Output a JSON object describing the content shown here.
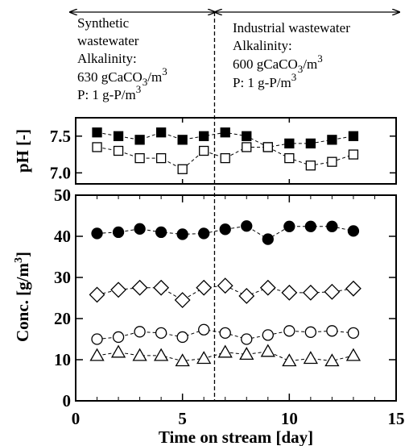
{
  "annotations": {
    "left": {
      "line1": "Synthetic",
      "line2": "wastewater",
      "line3": "Alkalinity:",
      "line4_pre": "630 gCaCO",
      "line4_sub": "3",
      "line4_mid": "/m",
      "line4_sup": "3",
      "line5_pre": "P: 1 g-P/m",
      "line5_sup": "3"
    },
    "right": {
      "line1": "Industrial wastewater",
      "line2": "Alkalinity:",
      "line3_pre": "600 gCaCO",
      "line3_sub": "3",
      "line3_mid": "/m",
      "line3_sup": "3",
      "line4_pre": "P: 1 g-P/m",
      "line4_sup": "3"
    }
  },
  "chart_data": [
    {
      "type": "scatter",
      "ylabel": "pH [-]",
      "ylim": [
        6.85,
        7.75
      ],
      "yticks": [
        "7.5",
        "7.0"
      ],
      "ytick_values": [
        7.5,
        7.0
      ],
      "xlim": [
        0,
        15
      ],
      "series": [
        {
          "marker": "filled-square",
          "x": [
            1,
            2,
            3,
            4,
            5,
            6,
            7,
            8,
            9,
            10,
            11,
            12,
            13
          ],
          "y": [
            7.55,
            7.5,
            7.45,
            7.55,
            7.45,
            7.5,
            7.55,
            7.5,
            7.35,
            7.4,
            7.4,
            7.45,
            7.5
          ]
        },
        {
          "marker": "open-square",
          "x": [
            1,
            2,
            3,
            4,
            5,
            6,
            7,
            8,
            9,
            10,
            11,
            12,
            13
          ],
          "y": [
            7.35,
            7.3,
            7.2,
            7.2,
            7.05,
            7.3,
            7.2,
            7.35,
            7.35,
            7.2,
            7.1,
            7.15,
            7.25
          ]
        }
      ],
      "divider_x": 6.5
    },
    {
      "type": "scatter",
      "xlabel": "Time on stream [day]",
      "ylabel_pre": "Conc. [g/m",
      "ylabel_sup": "3",
      "ylabel_post": "]",
      "xlim": [
        0,
        15
      ],
      "ylim": [
        0,
        50
      ],
      "xticks": [
        "0",
        "5",
        "10",
        "15"
      ],
      "xtick_values": [
        0,
        5,
        10,
        15
      ],
      "yticks": [
        "0",
        "10",
        "20",
        "30",
        "40",
        "50"
      ],
      "ytick_values": [
        0,
        10,
        20,
        30,
        40,
        50
      ],
      "series": [
        {
          "marker": "filled-circle",
          "x": [
            1,
            2,
            3,
            4,
            5,
            6,
            7,
            8,
            9,
            10,
            11,
            12,
            13
          ],
          "y": [
            40.7,
            41,
            41.8,
            41,
            40.5,
            40.7,
            41.7,
            42.5,
            39.3,
            42.4,
            42.4,
            42.4,
            41.3
          ]
        },
        {
          "marker": "open-diamond",
          "x": [
            1,
            2,
            3,
            4,
            5,
            6,
            7,
            8,
            9,
            10,
            11,
            12,
            13
          ],
          "y": [
            25.8,
            27,
            27.5,
            27.5,
            24.5,
            27.5,
            28,
            25.5,
            27.5,
            26.3,
            26.3,
            26.5,
            27.3
          ]
        },
        {
          "marker": "open-circle",
          "x": [
            1,
            2,
            3,
            4,
            5,
            6,
            7,
            8,
            9,
            10,
            11,
            12,
            13
          ],
          "y": [
            15,
            15.5,
            16.8,
            16.5,
            15.5,
            17.3,
            16.5,
            15,
            16,
            17,
            16.7,
            17,
            16.5
          ]
        },
        {
          "marker": "open-triangle",
          "x": [
            1,
            2,
            3,
            4,
            5,
            6,
            7,
            8,
            9,
            10,
            11,
            12,
            13
          ],
          "y": [
            11,
            11.8,
            11,
            11,
            9.7,
            10.3,
            11.8,
            11.3,
            12,
            9.7,
            10.3,
            9.7,
            11
          ]
        }
      ],
      "divider_x": 6.5
    }
  ]
}
